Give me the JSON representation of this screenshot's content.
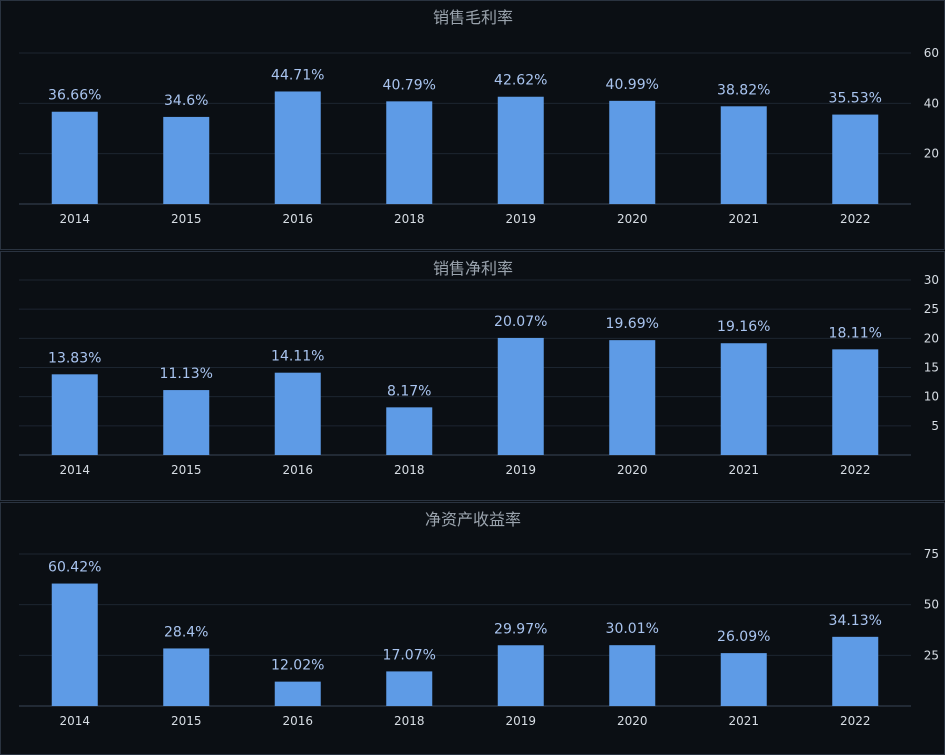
{
  "colors": {
    "bar": "#5e9be6",
    "background": "#0b0f14"
  },
  "chart_data": [
    {
      "type": "bar",
      "title": "销售毛利率",
      "categories": [
        "2014",
        "2015",
        "2016",
        "2018",
        "2019",
        "2020",
        "2021",
        "2022"
      ],
      "values": [
        36.66,
        34.6,
        44.71,
        40.79,
        42.62,
        40.99,
        38.82,
        35.53
      ],
      "data_labels": [
        "36.66%",
        "34.6%",
        "44.71%",
        "40.79%",
        "42.62%",
        "40.99%",
        "38.82%",
        "35.53%"
      ],
      "yticks": [
        20,
        40,
        60
      ],
      "ylim": [
        0,
        60
      ],
      "y_axis_position": "right",
      "grid": true
    },
    {
      "type": "bar",
      "title": "销售净利率",
      "categories": [
        "2014",
        "2015",
        "2016",
        "2018",
        "2019",
        "2020",
        "2021",
        "2022"
      ],
      "values": [
        13.83,
        11.13,
        14.11,
        8.17,
        20.07,
        19.69,
        19.16,
        18.11
      ],
      "data_labels": [
        "13.83%",
        "11.13%",
        "14.11%",
        "8.17%",
        "20.07%",
        "19.69%",
        "19.16%",
        "18.11%"
      ],
      "yticks": [
        5,
        10,
        15,
        20,
        25,
        30
      ],
      "ylim": [
        0,
        30
      ],
      "y_axis_position": "right",
      "grid": true
    },
    {
      "type": "bar",
      "title": "净资产收益率",
      "categories": [
        "2014",
        "2015",
        "2016",
        "2018",
        "2019",
        "2020",
        "2021",
        "2022"
      ],
      "values": [
        60.42,
        28.4,
        12.02,
        17.07,
        29.97,
        30.01,
        26.09,
        34.13
      ],
      "data_labels": [
        "60.42%",
        "28.4%",
        "12.02%",
        "17.07%",
        "29.97%",
        "30.01%",
        "26.09%",
        "34.13%"
      ],
      "yticks": [
        25,
        50,
        75
      ],
      "ylim": [
        0,
        75
      ],
      "y_axis_position": "right",
      "grid": true
    }
  ]
}
